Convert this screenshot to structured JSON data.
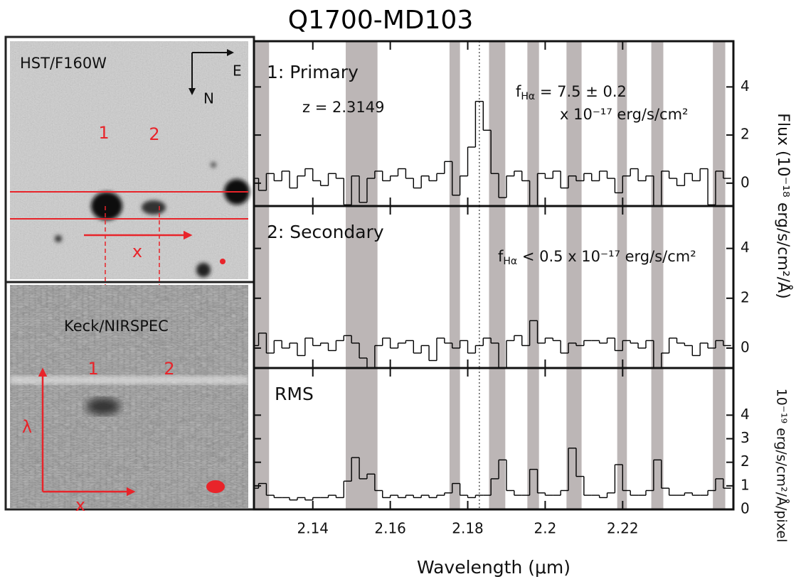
{
  "title": "Q1700-MD103",
  "images": {
    "top": {
      "label": "HST/F160W",
      "east": "E",
      "north": "N",
      "obj1": "1",
      "obj2": "2",
      "x": "x"
    },
    "bottom": {
      "label": "Keck/NIRSPEC",
      "obj1": "1",
      "obj2": "2",
      "lambda": "λ",
      "x": "x"
    }
  },
  "chart_data": [
    {
      "type": "step",
      "panel_label": "1: Primary",
      "ylabel": "Flux (10⁻¹⁸ erg/s/cm²/Å)",
      "annotations": [
        [
          {
            "text": "z = 2.3149"
          }
        ],
        [
          {
            "text": "f"
          },
          {
            "sub": "Hα"
          },
          {
            "text": " = 7.5 ± 0.2"
          }
        ],
        [
          {
            "text": "x 10⁻¹⁷ erg/s/cm²"
          }
        ]
      ],
      "xlim": [
        2.1248,
        2.2486
      ],
      "xticks": [
        2.14,
        2.16,
        2.18,
        2.2,
        2.22
      ],
      "ylim": [
        -0.95,
        5.9
      ],
      "yticks": [
        0,
        2,
        4
      ],
      "marker_x": 2.183,
      "shaded": [
        [
          2.125,
          2.1287
        ],
        [
          2.1485,
          2.1567
        ],
        [
          2.1753,
          2.178
        ],
        [
          2.1855,
          2.1897
        ],
        [
          2.1954,
          2.1984
        ],
        [
          2.2055,
          2.2094
        ],
        [
          2.2186,
          2.2211
        ],
        [
          2.2274,
          2.2305
        ],
        [
          2.2433,
          2.2465
        ]
      ],
      "color": "#000000",
      "x": [
        2.125,
        2.127,
        2.129,
        2.131,
        2.133,
        2.135,
        2.137,
        2.139,
        2.141,
        2.143,
        2.145,
        2.147,
        2.149,
        2.151,
        2.153,
        2.155,
        2.157,
        2.159,
        2.161,
        2.163,
        2.165,
        2.167,
        2.169,
        2.171,
        2.173,
        2.175,
        2.177,
        2.179,
        2.181,
        2.183,
        2.185,
        2.187,
        2.189,
        2.191,
        2.193,
        2.195,
        2.197,
        2.199,
        2.201,
        2.203,
        2.205,
        2.207,
        2.209,
        2.211,
        2.213,
        2.215,
        2.217,
        2.219,
        2.221,
        2.223,
        2.225,
        2.227,
        2.229,
        2.231,
        2.233,
        2.235,
        2.237,
        2.239,
        2.241,
        2.243,
        2.245,
        2.247
      ],
      "values": [
        0.2,
        -0.3,
        0.4,
        0.1,
        0.5,
        -0.2,
        0.3,
        0.6,
        0.1,
        -0.1,
        0.4,
        0.2,
        -0.9,
        0.3,
        -0.8,
        0.2,
        0.5,
        0.1,
        0.3,
        0.6,
        0.2,
        -0.2,
        0.3,
        0.1,
        0.4,
        0.9,
        -0.5,
        0.3,
        1.5,
        3.4,
        2.2,
        0.4,
        -0.6,
        0.3,
        0.5,
        0.1,
        -1.0,
        0.4,
        0.2,
        0.5,
        -0.2,
        0.3,
        0.1,
        0.4,
        0.1,
        0.5,
        0.2,
        -0.4,
        0.3,
        0.6,
        0.1,
        0.3,
        -1.1,
        0.5,
        0.2,
        -0.1,
        0.4,
        0.1,
        0.6,
        -0.9,
        0.5,
        0.2
      ]
    },
    {
      "type": "step",
      "panel_label": "2: Secondary",
      "annotations": [
        [
          {
            "text": "f"
          },
          {
            "sub": "Hα"
          },
          {
            "text": " < 0.5 x 10⁻¹⁷ erg/s/cm²"
          }
        ]
      ],
      "xlim": [
        2.1248,
        2.2486
      ],
      "xticks": [
        2.14,
        2.16,
        2.18,
        2.2,
        2.22
      ],
      "ylim": [
        -0.8,
        5.7
      ],
      "yticks": [
        0,
        2,
        4
      ],
      "marker_x": 2.183,
      "shaded": [
        [
          2.125,
          2.1287
        ],
        [
          2.1485,
          2.1567
        ],
        [
          2.1753,
          2.178
        ],
        [
          2.1855,
          2.1897
        ],
        [
          2.1954,
          2.1984
        ],
        [
          2.2055,
          2.2094
        ],
        [
          2.2186,
          2.2211
        ],
        [
          2.2274,
          2.2305
        ],
        [
          2.2433,
          2.2465
        ]
      ],
      "color": "#000000",
      "x": [
        2.125,
        2.127,
        2.129,
        2.131,
        2.133,
        2.135,
        2.137,
        2.139,
        2.141,
        2.143,
        2.145,
        2.147,
        2.149,
        2.151,
        2.153,
        2.155,
        2.157,
        2.159,
        2.161,
        2.163,
        2.165,
        2.167,
        2.169,
        2.171,
        2.173,
        2.175,
        2.177,
        2.179,
        2.181,
        2.183,
        2.185,
        2.187,
        2.189,
        2.191,
        2.193,
        2.195,
        2.197,
        2.199,
        2.201,
        2.203,
        2.205,
        2.207,
        2.209,
        2.211,
        2.213,
        2.215,
        2.217,
        2.219,
        2.221,
        2.223,
        2.225,
        2.227,
        2.229,
        2.231,
        2.233,
        2.235,
        2.237,
        2.239,
        2.241,
        2.243,
        2.245,
        2.247
      ],
      "values": [
        0.1,
        0.6,
        -0.2,
        0.3,
        0.0,
        0.2,
        -0.3,
        0.4,
        0.1,
        0.2,
        -0.1,
        0.3,
        0.5,
        0.2,
        -0.4,
        -1.1,
        0.1,
        0.4,
        0.0,
        0.2,
        0.3,
        -0.2,
        0.1,
        -0.5,
        0.4,
        0.2,
        0.0,
        0.3,
        -0.2,
        0.1,
        0.4,
        0.2,
        -0.8,
        0.3,
        0.5,
        0.1,
        1.1,
        0.2,
        0.4,
        0.3,
        -0.2,
        0.2,
        0.1,
        0.3,
        0.3,
        0.2,
        0.4,
        -0.1,
        0.3,
        0.2,
        0.0,
        0.3,
        -1.0,
        -0.2,
        0.4,
        0.2,
        0.1,
        -0.3,
        0.2,
        0.0,
        0.3,
        0.1
      ]
    },
    {
      "type": "step",
      "panel_label": "RMS",
      "ylabel": "10⁻¹⁹ erg/s/cm²/Å/pixel",
      "xlabel": "Wavelength (μm)",
      "annotations": [],
      "xlim": [
        2.1248,
        2.2486
      ],
      "xticks": [
        2.14,
        2.16,
        2.18,
        2.2,
        2.22
      ],
      "ylim": [
        0,
        6.0
      ],
      "yticks": [
        0,
        1,
        2,
        3,
        4
      ],
      "marker_x": 2.183,
      "shaded": [
        [
          2.125,
          2.1287
        ],
        [
          2.1485,
          2.1567
        ],
        [
          2.1753,
          2.178
        ],
        [
          2.1855,
          2.1897
        ],
        [
          2.1954,
          2.1984
        ],
        [
          2.2055,
          2.2094
        ],
        [
          2.2186,
          2.2211
        ],
        [
          2.2274,
          2.2305
        ],
        [
          2.2433,
          2.2465
        ]
      ],
      "color": "#000000",
      "x": [
        2.125,
        2.127,
        2.129,
        2.131,
        2.133,
        2.135,
        2.137,
        2.139,
        2.141,
        2.143,
        2.145,
        2.147,
        2.149,
        2.151,
        2.153,
        2.155,
        2.157,
        2.159,
        2.161,
        2.163,
        2.165,
        2.167,
        2.169,
        2.171,
        2.173,
        2.175,
        2.177,
        2.179,
        2.181,
        2.183,
        2.185,
        2.187,
        2.189,
        2.191,
        2.193,
        2.195,
        2.197,
        2.199,
        2.201,
        2.203,
        2.205,
        2.207,
        2.209,
        2.211,
        2.213,
        2.215,
        2.217,
        2.219,
        2.221,
        2.223,
        2.225,
        2.227,
        2.229,
        2.231,
        2.233,
        2.235,
        2.237,
        2.239,
        2.241,
        2.243,
        2.245,
        2.247
      ],
      "values": [
        0.9,
        1.1,
        0.6,
        0.5,
        0.5,
        0.4,
        0.5,
        0.4,
        0.5,
        0.5,
        0.6,
        0.5,
        1.2,
        2.2,
        1.3,
        1.5,
        0.8,
        0.5,
        0.6,
        0.5,
        0.6,
        0.5,
        0.6,
        0.5,
        0.6,
        0.7,
        1.1,
        0.6,
        0.5,
        0.6,
        0.6,
        1.3,
        2.1,
        0.8,
        0.6,
        0.6,
        1.7,
        0.7,
        0.6,
        0.6,
        0.8,
        2.6,
        1.4,
        0.6,
        0.6,
        0.5,
        0.7,
        1.9,
        0.8,
        0.6,
        0.6,
        0.8,
        2.1,
        0.9,
        0.6,
        0.6,
        0.7,
        0.6,
        0.6,
        0.8,
        1.3,
        0.9
      ]
    }
  ]
}
